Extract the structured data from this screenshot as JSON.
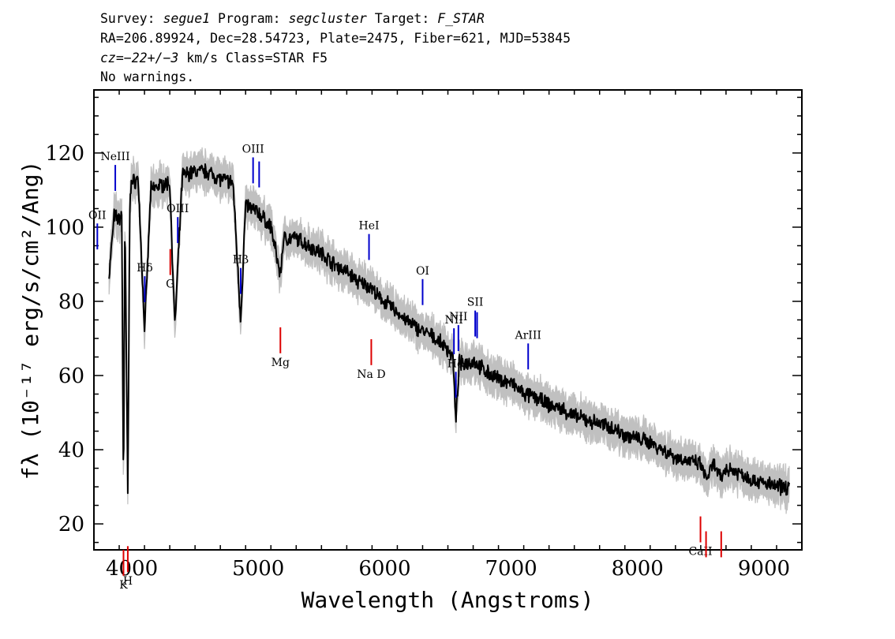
{
  "header": {
    "line1": {
      "survey_label": "Survey: ",
      "survey": "segue1",
      "program_label": " Program: ",
      "program": "segcluster",
      "target_label": " Target: ",
      "target": "F_STAR"
    },
    "line2": "RA=206.89924, Dec=28.54723, Plate=2475, Fiber=621, MJD=53845",
    "line3": {
      "cz": "cz=−22+/−3",
      "rest": " km/s Class=STAR F5"
    },
    "line4": "No warnings."
  },
  "chart_data": {
    "type": "line",
    "xlabel": "Wavelength (Angstroms)",
    "ylabel": "fλ (10⁻¹⁷ erg/s/cm²/Ang)",
    "xlim": [
      3700,
      9300
    ],
    "ylim": [
      13,
      137
    ],
    "x_ticks": [
      4000,
      5000,
      6000,
      7000,
      8000,
      9000
    ],
    "y_ticks": [
      20,
      40,
      60,
      80,
      100,
      120
    ],
    "grid": false,
    "colors": {
      "flux": "#000000",
      "error": "#c0c0c0",
      "emission": "#0000cc",
      "absorption": "#dd0000"
    },
    "flux": {
      "x": [
        3820,
        3860,
        3900,
        3920,
        3934,
        3945,
        3968,
        3985,
        4000,
        4050,
        4101,
        4150,
        4200,
        4300,
        4340,
        4400,
        4500,
        4600,
        4700,
        4800,
        4861,
        4900,
        5000,
        5100,
        5175,
        5200,
        5300,
        5400,
        5500,
        5600,
        5700,
        5800,
        5890,
        5950,
        6000,
        6100,
        6200,
        6300,
        6400,
        6500,
        6540,
        6563,
        6590,
        6600,
        6700,
        6800,
        6900,
        7000,
        7100,
        7200,
        7300,
        7400,
        7500,
        7600,
        7700,
        7800,
        7900,
        8000,
        8100,
        8200,
        8300,
        8400,
        8500,
        8542,
        8600,
        8662,
        8700,
        8800,
        8900,
        9000,
        9100,
        9200
      ],
      "y": [
        87,
        103,
        102,
        104,
        27,
        103,
        28,
        110,
        112,
        113,
        72,
        110,
        111,
        112,
        73,
        114,
        115,
        115,
        113,
        112,
        75,
        106,
        104,
        100,
        87,
        97,
        97,
        95,
        93,
        90,
        88,
        85,
        84,
        81,
        80,
        77,
        74,
        72,
        70,
        67,
        65,
        47,
        64,
        63,
        64,
        61,
        59,
        58,
        55,
        54,
        52,
        51,
        49,
        48,
        47,
        46,
        44,
        43,
        42,
        40,
        38,
        37,
        36,
        32,
        36,
        32,
        35,
        34,
        32,
        31,
        30,
        30
      ]
    },
    "emission_lines": [
      {
        "label": "OII",
        "wavelength": 3727
      },
      {
        "label": "NeIII",
        "wavelength": 3869
      },
      {
        "label": "Hδ",
        "wavelength": 4102
      },
      {
        "label": "OIII",
        "wavelength": 4363
      },
      {
        "label": "Hβ",
        "wavelength": 4861
      },
      {
        "label": "OIII",
        "wavelength": 4959
      },
      {
        "label": "",
        "wavelength": 5007
      },
      {
        "label": "HeI",
        "wavelength": 5876
      },
      {
        "label": "OI",
        "wavelength": 6300
      },
      {
        "label": "NII",
        "wavelength": 6548
      },
      {
        "label": "Hα",
        "wavelength": 6563
      },
      {
        "label": "NII",
        "wavelength": 6583
      },
      {
        "label": "SII",
        "wavelength": 6716
      },
      {
        "label": "",
        "wavelength": 6731
      },
      {
        "label": "ArIII",
        "wavelength": 7135
      }
    ],
    "absorption_lines": [
      {
        "label": "K",
        "wavelength": 3934
      },
      {
        "label": "H",
        "wavelength": 3968
      },
      {
        "label": "G",
        "wavelength": 4304
      },
      {
        "label": "Mg",
        "wavelength": 5175
      },
      {
        "label": "Na D",
        "wavelength": 5894
      },
      {
        "label": "CaII",
        "wavelength": 8498
      },
      {
        "label": "",
        "wavelength": 8542
      },
      {
        "label": "",
        "wavelength": 8662
      }
    ]
  }
}
